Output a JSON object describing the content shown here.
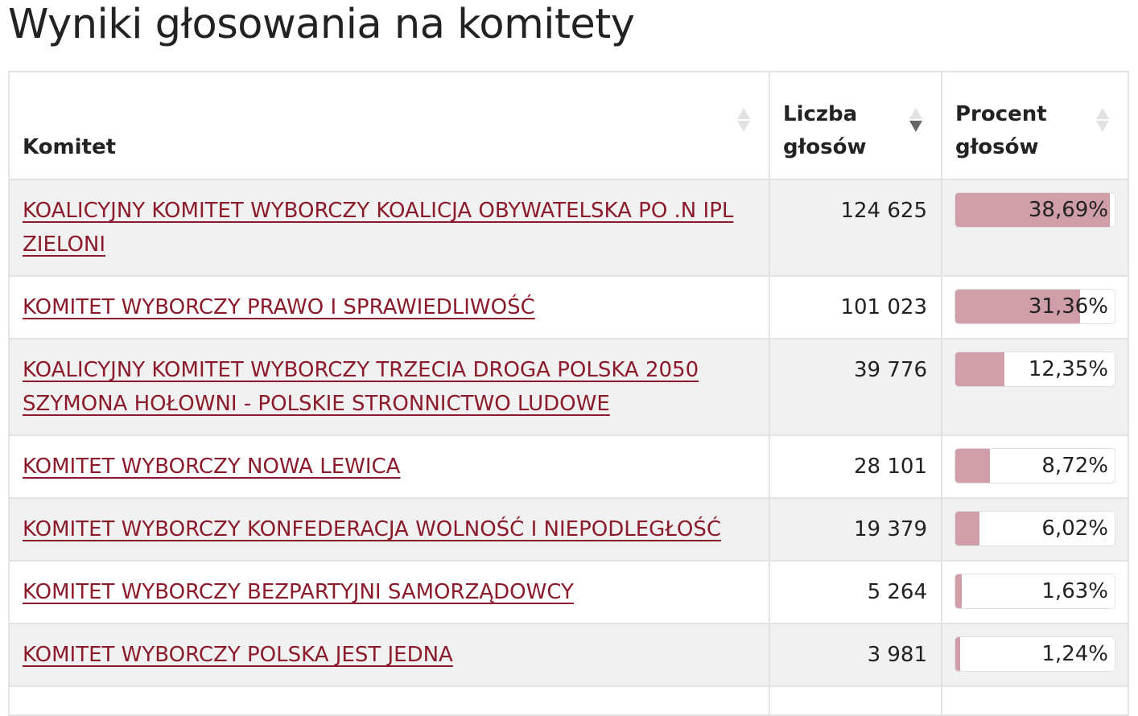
{
  "page": {
    "title": "Wyniki głosowania na komitety"
  },
  "colors": {
    "link": "#8b1a2b",
    "bar_fill": "#cf9ea9",
    "row_alt": "#f1f1f1"
  },
  "table": {
    "columns": [
      {
        "label": "Komitet",
        "sort": "unsorted",
        "icon": "sort-icon"
      },
      {
        "label": "Liczba głosów",
        "sort": "descending",
        "icon": "sort-descending-icon"
      },
      {
        "label": "Procent głosów",
        "sort": "unsorted",
        "icon": "sort-icon"
      }
    ],
    "rows": [
      {
        "committee": "KOALICYJNY KOMITET WYBORCZY KOALICJA OBYWATELSKA PO .N IPL ZIELONI",
        "votes": "124 625",
        "percent_label": "38,69%",
        "percent": 38.69
      },
      {
        "committee": "KOMITET WYBORCZY PRAWO I SPRAWIEDLIWOŚĆ",
        "votes": "101 023",
        "percent_label": "31,36%",
        "percent": 31.36
      },
      {
        "committee": "KOALICYJNY KOMITET WYBORCZY TRZECIA DROGA POLSKA 2050 SZYMONA HOŁOWNI - POLSKIE STRONNICTWO LUDOWE",
        "votes": "39 776",
        "percent_label": "12,35%",
        "percent": 12.35
      },
      {
        "committee": "KOMITET WYBORCZY NOWA LEWICA",
        "votes": "28 101",
        "percent_label": "8,72%",
        "percent": 8.72
      },
      {
        "committee": "KOMITET WYBORCZY KONFEDERACJA WOLNOŚĆ I NIEPODLEGŁOŚĆ",
        "votes": "19 379",
        "percent_label": "6,02%",
        "percent": 6.02
      },
      {
        "committee": "KOMITET WYBORCZY BEZPARTYJNI SAMORZĄDOWCY",
        "votes": "5 264",
        "percent_label": "1,63%",
        "percent": 1.63
      },
      {
        "committee": "KOMITET WYBORCZY POLSKA JEST JEDNA",
        "votes": "3 981",
        "percent_label": "1,24%",
        "percent": 1.24
      }
    ]
  }
}
